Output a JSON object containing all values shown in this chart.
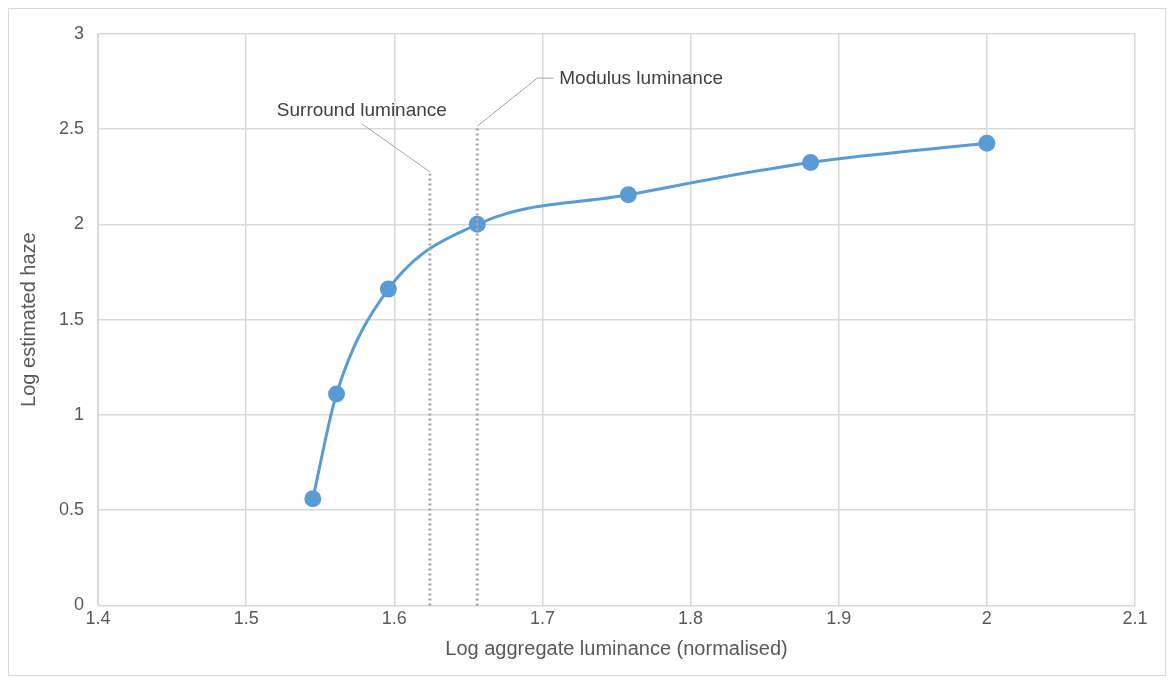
{
  "chart_data": {
    "type": "line",
    "xlabel": "Log aggregate luminance (normalised)",
    "ylabel": "Log estimated haze",
    "x": [
      1.545,
      1.561,
      1.596,
      1.656,
      1.758,
      1.881,
      2.0
    ],
    "series": [
      {
        "color": "#5b9bd5",
        "values": [
          0.56,
          1.11,
          1.66,
          2.0,
          2.155,
          2.325,
          2.425
        ]
      }
    ],
    "xlim": [
      1.4,
      2.1
    ],
    "xticks": [
      1.4,
      1.5,
      1.6,
      1.7,
      1.8,
      1.9,
      2,
      2.1
    ],
    "ylim": [
      0,
      3
    ],
    "yticks": [
      0,
      0.5,
      1,
      1.5,
      2,
      2.5,
      3
    ],
    "grid": true,
    "legend": false,
    "marker": "circle",
    "line_style": "solid",
    "ref_lines": [
      {
        "axis": "x",
        "value": 1.624,
        "label": "Surround luminance",
        "color": "#a5a5a5",
        "line_style": "dotted"
      },
      {
        "axis": "x",
        "value": 1.656,
        "label": "Modulus luminance",
        "color": "#a5a5a5",
        "line_style": "dotted"
      }
    ]
  }
}
